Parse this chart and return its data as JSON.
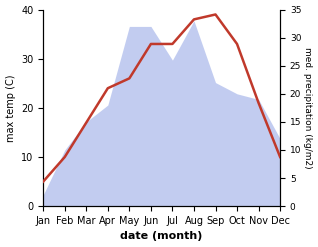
{
  "months": [
    "Jan",
    "Feb",
    "Mar",
    "Apr",
    "May",
    "Jun",
    "Jul",
    "Aug",
    "Sep",
    "Oct",
    "Nov",
    "Dec"
  ],
  "temp": [
    5,
    10,
    17,
    24,
    26,
    33,
    33,
    38,
    39,
    33,
    21,
    10
  ],
  "precip": [
    2,
    10,
    15,
    18,
    32,
    32,
    26,
    33,
    22,
    20,
    19,
    12
  ],
  "temp_color": "#c0392b",
  "precip_color_fill": "#b8c4ee",
  "ylim_left": [
    0,
    40
  ],
  "ylim_right": [
    0,
    35
  ],
  "xlabel": "date (month)",
  "ylabel_left": "max temp (C)",
  "ylabel_right": "med. precipitation (kg/m2)",
  "yticks_left": [
    0,
    10,
    20,
    30,
    40
  ],
  "yticks_right": [
    0,
    5,
    10,
    15,
    20,
    25,
    30,
    35
  ]
}
